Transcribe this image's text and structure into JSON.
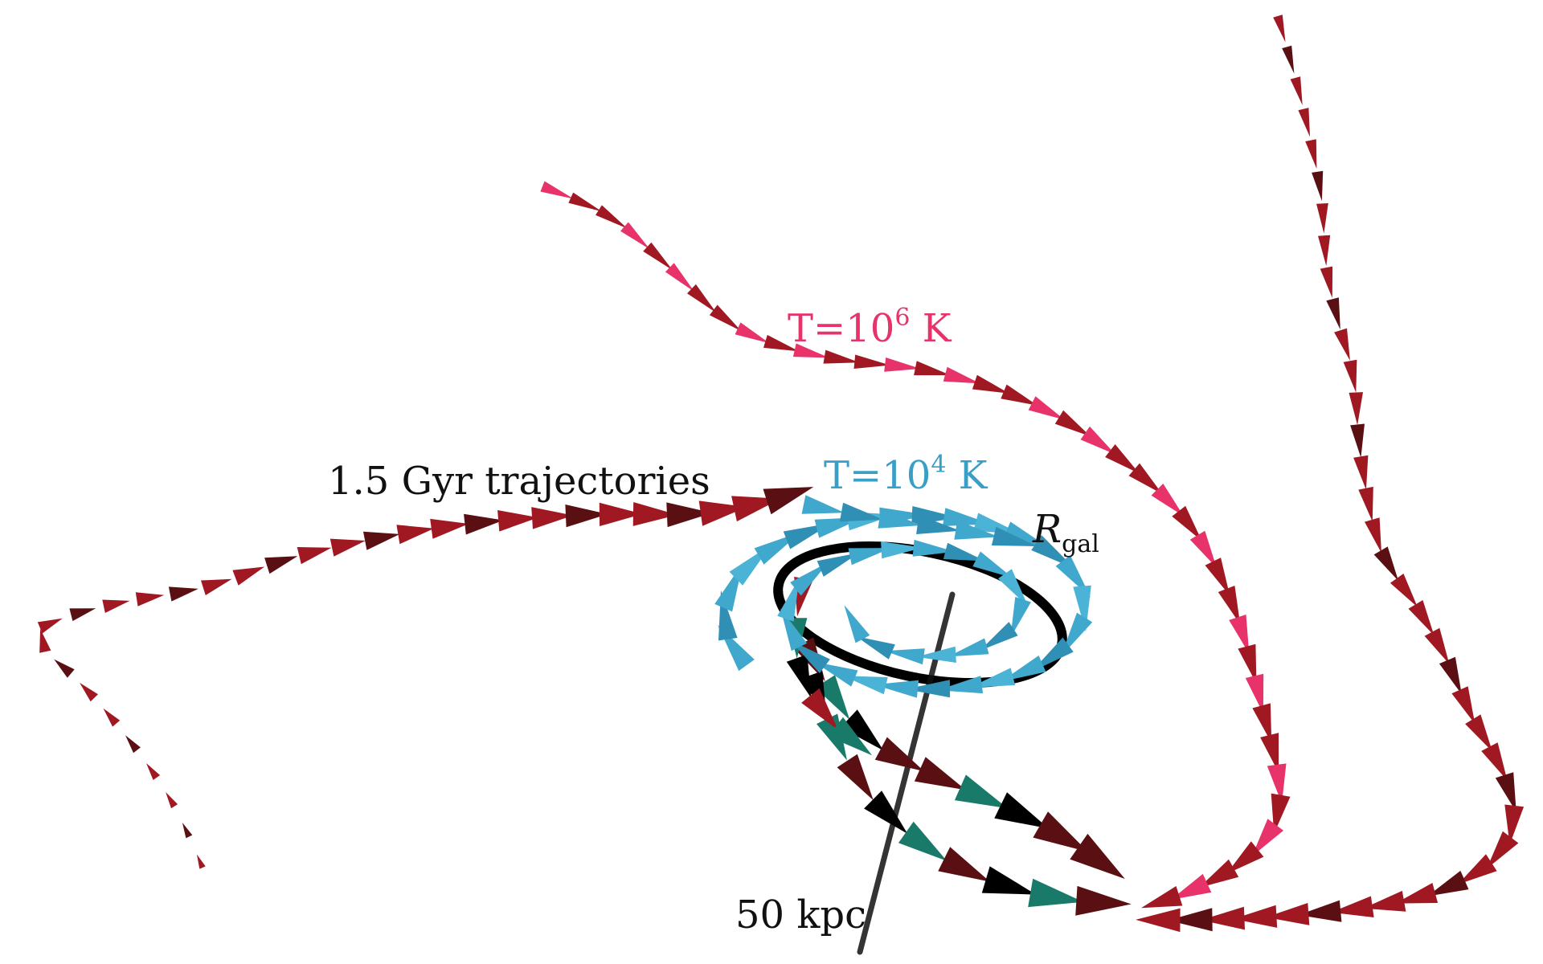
{
  "labels": {
    "hot_gas": {
      "prefix": "T=10",
      "exponent": "6",
      "unit": " K",
      "color": "#e8336a"
    },
    "cold_gas": {
      "prefix": "T=10",
      "exponent": "4",
      "unit": " K",
      "color": "#3a9fc7"
    },
    "trajectories": "1.5 Gyr trajectories",
    "radius": {
      "symbol": "R",
      "subscript": "gal"
    },
    "scale_bar": "50 kpc"
  },
  "colors": {
    "hot_red": "#a01822",
    "dark_red": "#5a0f12",
    "pink": "#e8336a",
    "cyan": "#3fa8cc",
    "teal": "#1a7a6a",
    "black": "#000000"
  }
}
